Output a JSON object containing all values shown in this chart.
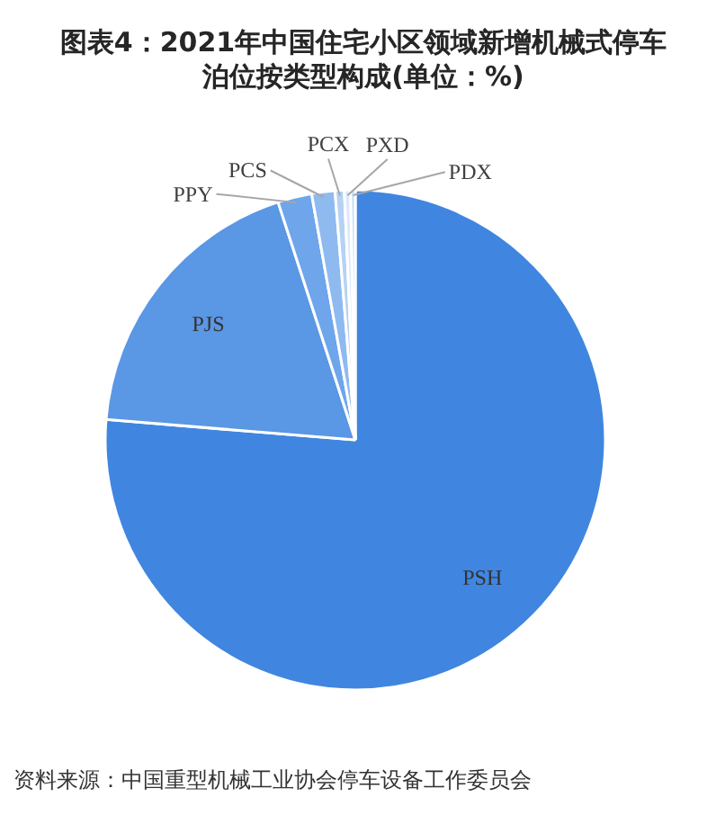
{
  "chart_data": {
    "type": "pie",
    "title": "图表4：2021年中国住宅小区领域新增机械式停车泊位按类型构成(单位：%)",
    "categories": [
      "PSH",
      "PJS",
      "PPY",
      "PCS",
      "PCX",
      "PXD",
      "PDX"
    ],
    "values": [
      76.3,
      18.7,
      2.2,
      1.5,
      0.6,
      0.4,
      0.3
    ],
    "colors": [
      "#4086e0",
      "#5a97e5",
      "#6ea5eb",
      "#8fbaf0",
      "#b5d2f5",
      "#dde9fa",
      "#c6ddf8"
    ],
    "annotations": [
      "资料来源：中国重型机械工业协会停车设备工作委员会"
    ]
  }
}
